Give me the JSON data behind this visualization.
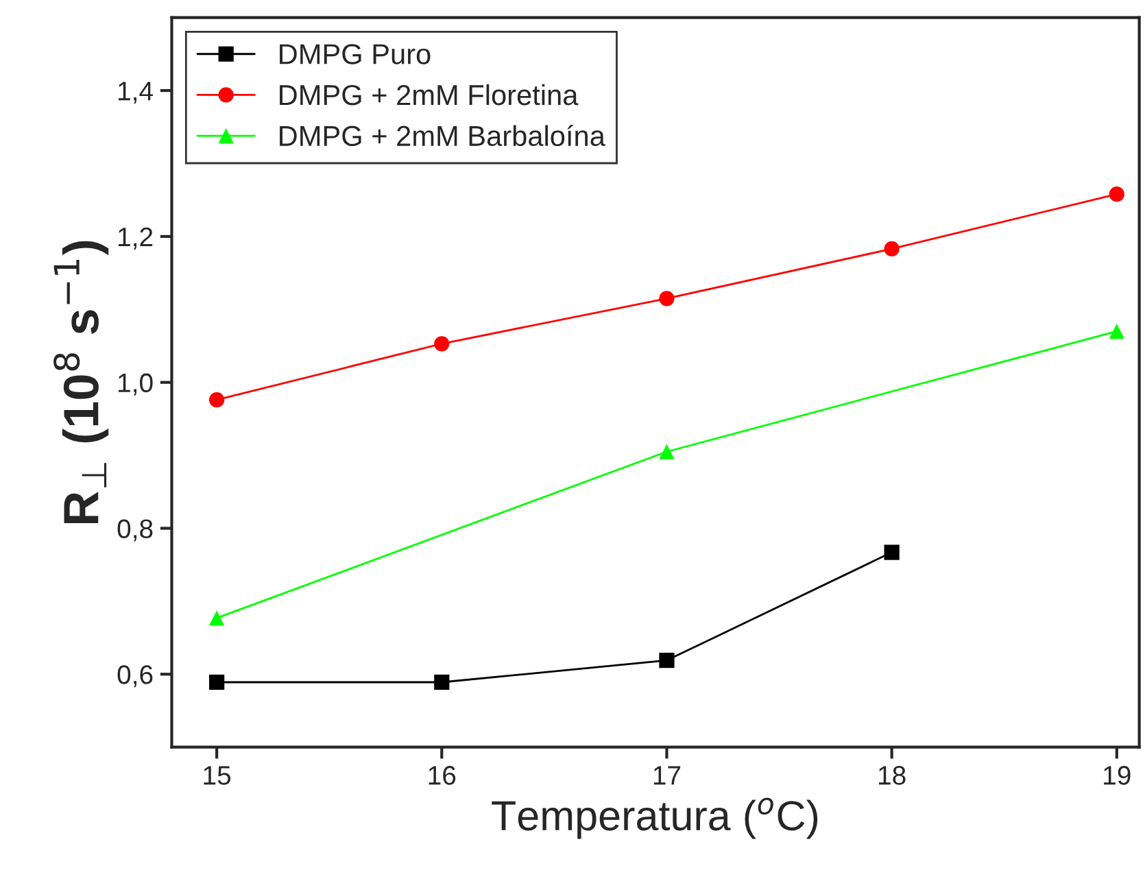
{
  "chart_data": {
    "type": "line",
    "xlabel": "Temperatura ($^{o}$C)",
    "ylabel": "R$_{⊥}$ (10$^{8}$ s$^{−1}$)",
    "xlim": [
      14.8,
      19.1
    ],
    "ylim": [
      0.5,
      1.5
    ],
    "xticks": [
      15,
      16,
      17,
      18,
      19
    ],
    "yticks": [
      {
        "value": 0.6,
        "label": "0,6"
      },
      {
        "value": 0.8,
        "label": "0,8"
      },
      {
        "value": 1.0,
        "label": "1,0"
      },
      {
        "value": 1.2,
        "label": "1,2"
      },
      {
        "value": 1.4,
        "label": "1,4"
      }
    ],
    "legend": "top left",
    "grid": false,
    "series": [
      {
        "name": "DMPG Puro",
        "color": "#000000",
        "marker": "square",
        "x": [
          15,
          16,
          17,
          18
        ],
        "values": [
          0.589,
          0.589,
          0.619,
          0.767
        ]
      },
      {
        "name": "DMPG + 2mM Floretina",
        "color": "#ff0000",
        "marker": "circle",
        "x": [
          15,
          16,
          17,
          18,
          19
        ],
        "values": [
          0.976,
          1.053,
          1.115,
          1.183,
          1.258
        ]
      },
      {
        "name": "DMPG + 2mM Barbaloína",
        "color": "#00ff00",
        "marker": "triangle",
        "x": [
          15,
          17,
          19
        ],
        "values": [
          0.677,
          0.905,
          1.07
        ]
      }
    ]
  }
}
